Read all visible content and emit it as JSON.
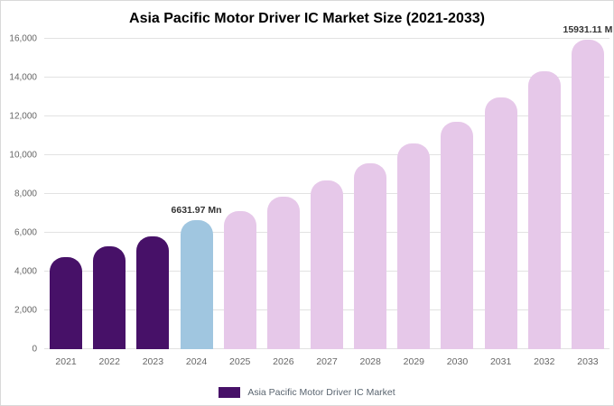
{
  "title": "Asia Pacific Motor Driver IC Market Size (2021-2033)",
  "legend": {
    "label": "Asia Pacific Motor Driver IC Market",
    "swatch_color": "#471168"
  },
  "colors": {
    "historical_bar": "#471168",
    "current_year_bar": "#a0c6e0",
    "forecast_bar": "#e6c8e9",
    "gridline": "#e2e2e2",
    "axis_text": "#666666",
    "annotation_text": "#333333"
  },
  "chart_data": {
    "type": "bar",
    "title": "Asia Pacific Motor Driver IC Market Size (2021-2033)",
    "xlabel": "",
    "ylabel": "",
    "ylim": [
      0,
      16000
    ],
    "grid": true,
    "legend_position": "bottom",
    "legend_entries": [
      "Asia Pacific Motor Driver IC Market"
    ],
    "categories": [
      "2021",
      "2022",
      "2023",
      "2024",
      "2025",
      "2026",
      "2027",
      "2028",
      "2029",
      "2030",
      "2031",
      "2032",
      "2033"
    ],
    "values": [
      4750,
      5320,
      5830,
      6631.97,
      7100,
      7880,
      8680,
      9560,
      10600,
      11720,
      12960,
      14320,
      15931.11
    ],
    "bar_colors": [
      "#471168",
      "#471168",
      "#471168",
      "#a0c6e0",
      "#e6c8e9",
      "#e6c8e9",
      "#e6c8e9",
      "#e6c8e9",
      "#e6c8e9",
      "#e6c8e9",
      "#e6c8e9",
      "#e6c8e9",
      "#e6c8e9"
    ],
    "annotations": [
      {
        "category": "2024",
        "text": "6631.97 Mn"
      },
      {
        "category": "2033",
        "text": "15931.11 M"
      }
    ],
    "yticks": [
      "0",
      "2,000",
      "4,000",
      "6,000",
      "8,000",
      "10,000",
      "12,000",
      "14,000",
      "16,000"
    ]
  }
}
